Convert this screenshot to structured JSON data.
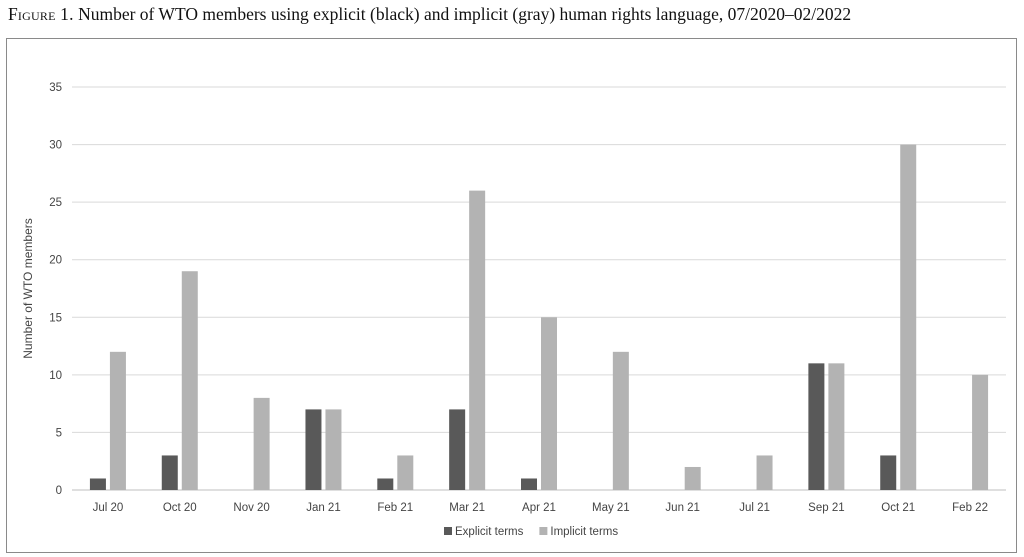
{
  "caption": {
    "label": "Figure 1.",
    "text": "Number of WTO members using explicit (black) and implicit (gray) human rights language, 07/2020–02/2022"
  },
  "chart_data": {
    "type": "bar",
    "title": "",
    "xlabel": "",
    "ylabel": "Number of WTO members",
    "ylim": [
      0,
      35
    ],
    "yticks": [
      0,
      5,
      10,
      15,
      20,
      25,
      30,
      35
    ],
    "grid": true,
    "legend_position": "bottom",
    "categories": [
      "Jul 20",
      "Oct 20",
      "Nov 20",
      "Jan 21",
      "Feb 21",
      "Mar 21",
      "Apr 21",
      "May 21",
      "Jun 21",
      "Jul 21",
      "Sep 21",
      "Oct 21",
      "Feb 22"
    ],
    "series": [
      {
        "name": "Explicit terms",
        "color": "#595959",
        "values": [
          1,
          3,
          0,
          7,
          1,
          7,
          1,
          0,
          0,
          0,
          11,
          3,
          0
        ]
      },
      {
        "name": "Implicit terms",
        "color": "#b3b3b3",
        "values": [
          12,
          19,
          8,
          7,
          3,
          26,
          15,
          12,
          2,
          3,
          11,
          30,
          10
        ]
      }
    ]
  }
}
